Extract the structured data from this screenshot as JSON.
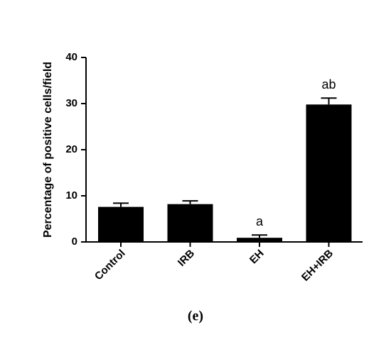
{
  "chart_data": {
    "type": "bar",
    "y_label": "Percentage of positive cells/field",
    "categories": [
      "Control",
      "IRB",
      "EH",
      "EH+IRB"
    ],
    "values": [
      7.6,
      8.2,
      0.9,
      29.8
    ],
    "errors": [
      0.8,
      0.7,
      0.6,
      1.4
    ],
    "significance": [
      null,
      null,
      "a",
      "ab"
    ],
    "color": "#000000",
    "ylim": [
      0,
      40
    ],
    "yticks": [
      0,
      10,
      20,
      30,
      40
    ],
    "caption": "(e)"
  }
}
